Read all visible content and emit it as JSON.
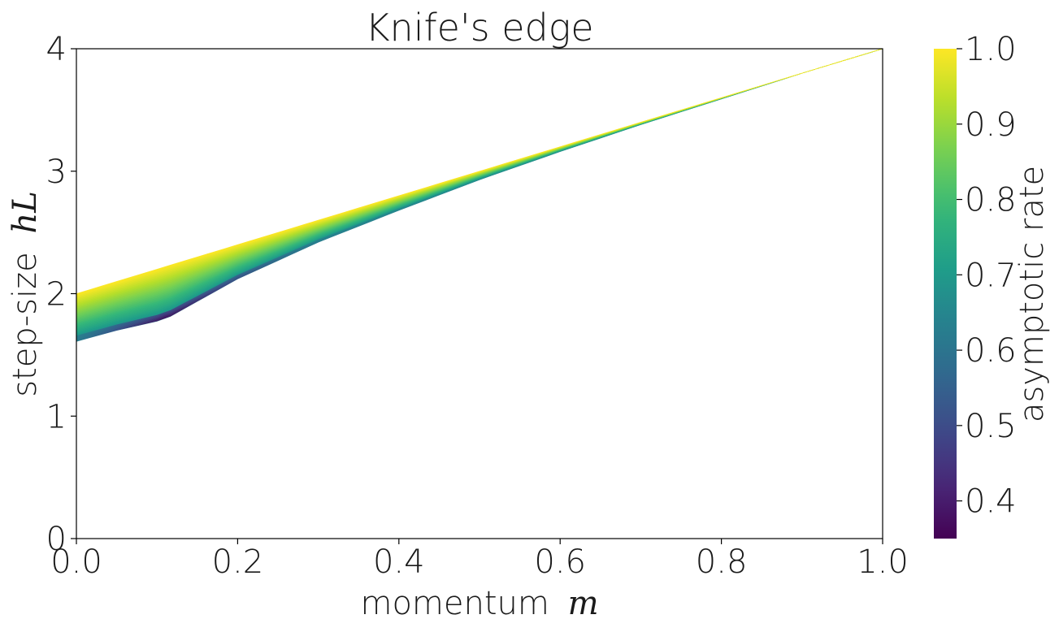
{
  "chart_data": {
    "type": "heatmap",
    "title": "Knife's edge",
    "xlabel": "momentum",
    "xlabel_symbol": "m",
    "ylabel": "step-size",
    "ylabel_symbol": "hL",
    "xlim": [
      0.0,
      1.0
    ],
    "ylim": [
      0,
      4
    ],
    "x_ticks": [
      0.0,
      0.2,
      0.4,
      0.6,
      0.8,
      1.0
    ],
    "x_tick_labels": [
      "0.0",
      "0.2",
      "0.4",
      "0.6",
      "0.8",
      "1.0"
    ],
    "y_ticks": [
      0,
      1,
      2,
      3,
      4
    ],
    "y_tick_labels": [
      "0",
      "1",
      "2",
      "3",
      "4"
    ],
    "grid": false,
    "colormap": "viridis",
    "colorbar": {
      "label": "asymptotic rate",
      "range": [
        0.35,
        1.0
      ],
      "ticks": [
        0.4,
        0.5,
        0.6,
        0.7,
        0.8,
        0.9,
        1.0
      ],
      "tick_labels": [
        "0.4",
        "0.5",
        "0.6",
        "0.7",
        "0.8",
        "0.9",
        "1.0"
      ]
    },
    "region": {
      "description_of_bounds": "colored region lies between lower and upper step-size boundaries as a function of momentum",
      "upper_boundary": {
        "m": [
          0.0,
          1.0
        ],
        "hL": [
          2.0,
          4.0
        ]
      },
      "lower_boundary": {
        "m": [
          0.0,
          0.05,
          0.11,
          0.2,
          0.3,
          0.4,
          0.5,
          0.6,
          0.7,
          0.8,
          0.9,
          1.0
        ],
        "hL": [
          1.61,
          1.7,
          1.79,
          2.12,
          2.42,
          2.68,
          2.93,
          3.16,
          3.38,
          3.59,
          3.8,
          4.0
        ]
      },
      "min_rate_location": {
        "m": 0.11,
        "hL": 1.79,
        "rate": 0.35
      },
      "rate_at_upper_boundary": 1.0
    }
  }
}
